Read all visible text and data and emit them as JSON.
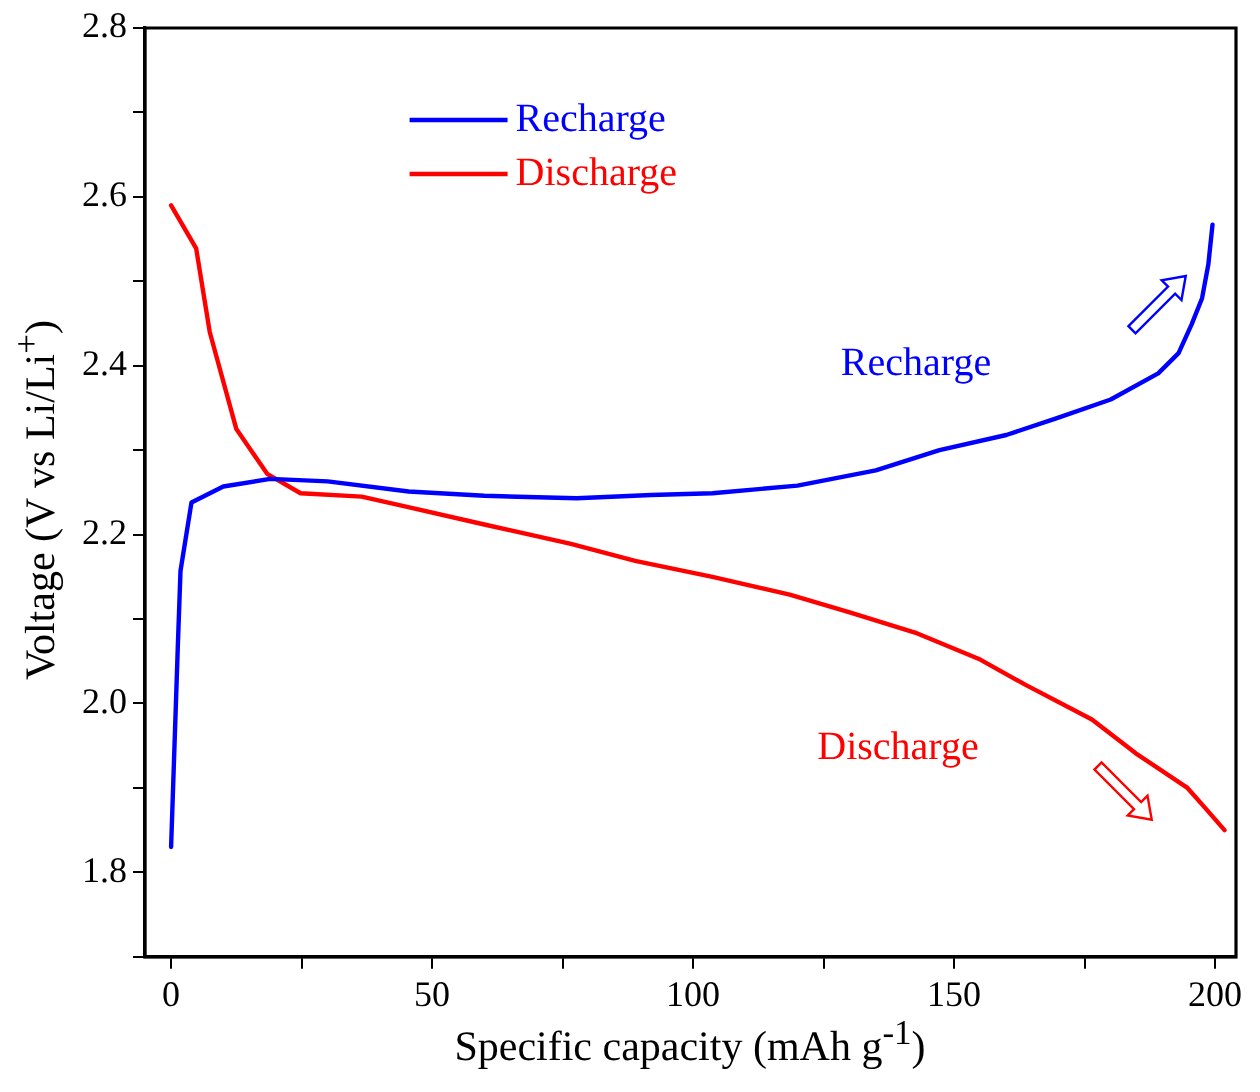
{
  "chart_data": {
    "type": "line",
    "xlabel": "Specific capacity (mAh g$^{-1}$)",
    "ylabel": "Voltage (V vs Li/Li$^{+}$)",
    "xlim": [
      -5,
      204
    ],
    "ylim": [
      1.7,
      2.8
    ],
    "xticks": [
      0,
      {
        "value": 25,
        "label": null
      },
      50,
      {
        "value": 75,
        "label": null
      },
      100,
      {
        "value": 125,
        "label": null
      },
      150,
      {
        "value": 175,
        "label": null
      },
      200
    ],
    "yticks": [
      {
        "value": 1.7,
        "label": null
      },
      1.8,
      {
        "value": 1.9,
        "label": null
      },
      {
        "value": 2.0,
        "label": "2.0"
      },
      {
        "value": 2.1,
        "label": null
      },
      2.2,
      {
        "value": 2.3,
        "label": null
      },
      2.4,
      {
        "value": 2.5,
        "label": null
      },
      2.6,
      {
        "value": 2.7,
        "label": null
      },
      2.8
    ],
    "grid": false,
    "legend": "top",
    "marker": "none",
    "line_style": "solid",
    "series": [
      {
        "name": "Recharge",
        "color": "#0000ff",
        "x": [
          0,
          1.3,
          1.8,
          3.9,
          10,
          19,
          30,
          45.5,
          60,
          77.7,
          92,
          103.7,
          120,
          135,
          147.2,
          160,
          169.7,
          180,
          189.1,
          193,
          195.5,
          197.5,
          198.7,
          199.5
        ],
        "values": [
          1.83,
          2.07,
          2.157,
          2.238,
          2.257,
          2.266,
          2.263,
          2.251,
          2.246,
          2.243,
          2.247,
          2.249,
          2.258,
          2.276,
          2.3,
          2.318,
          2.338,
          2.36,
          2.391,
          2.415,
          2.449,
          2.48,
          2.52,
          2.567
        ]
      },
      {
        "name": "Discharge",
        "color": "#ff0000",
        "x": [
          0,
          4.8,
          7.4,
          12.5,
          18.4,
          24.8,
          36.5,
          41.6,
          60,
          76.6,
          88.9,
          103.7,
          118.5,
          130,
          142.5,
          155,
          163.7,
          176.4,
          184.8,
          194.7,
          198,
          201.8
        ],
        "values": [
          2.59,
          2.539,
          2.44,
          2.325,
          2.272,
          2.249,
          2.245,
          2.238,
          2.212,
          2.189,
          2.169,
          2.15,
          2.129,
          2.108,
          2.084,
          2.052,
          2.022,
          1.981,
          1.941,
          1.9,
          1.877,
          1.85
        ]
      }
    ],
    "annotations": [
      "Recharge",
      "Discharge"
    ]
  }
}
